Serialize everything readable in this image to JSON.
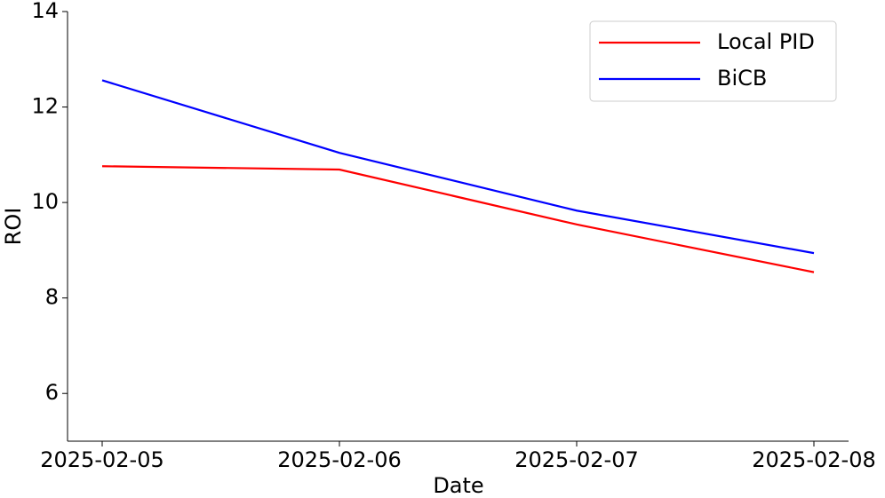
{
  "chart_data": {
    "type": "line",
    "x_label": "Date",
    "y_label": "ROI",
    "categories": [
      "2025-02-05",
      "2025-02-06",
      "2025-02-07",
      "2025-02-08"
    ],
    "series": [
      {
        "name": "Local PID",
        "color": "#ff0000",
        "values": [
          10.76,
          10.69,
          9.54,
          8.54
        ]
      },
      {
        "name": "BiCB",
        "color": "#0000ff",
        "values": [
          12.56,
          11.04,
          9.83,
          8.94
        ]
      }
    ],
    "ylim": [
      5,
      14
    ],
    "yticks": [
      6,
      8,
      10,
      12,
      14
    ],
    "legend": "upper right"
  }
}
